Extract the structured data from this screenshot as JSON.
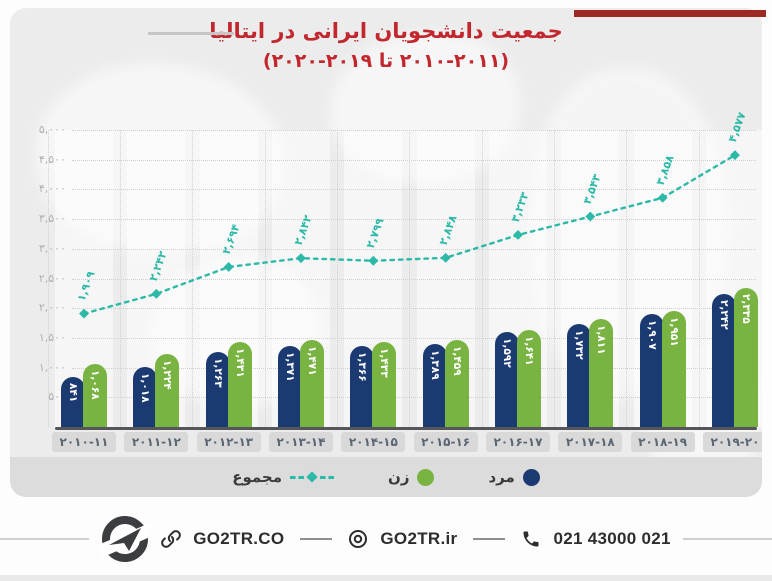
{
  "header": {
    "title": "جمعیت دانشجویان ایرانی در ایتالیا",
    "subtitle": "(۲۰۱۰-۲۰۱۱ تا ۲۰۱۹-۲۰۲۰)"
  },
  "colors": {
    "title_red": "#c1272d",
    "accent_red": "#9e2823",
    "men_blue": "#1c3a72",
    "women_green": "#79b342",
    "total_teal": "#2db9a8",
    "card_bg": "#ececec",
    "legend_bg": "#dcdcdc"
  },
  "chart_data": {
    "type": "bar",
    "title": "جمعیت دانشجویان ایرانی در ایتالیا (2010-2011 تا 2019-2020)",
    "categories": [
      "2010-11",
      "2011-12",
      "2012-13",
      "2013-14",
      "2014-15",
      "2015-16",
      "2016-17",
      "2017-18",
      "2018-19",
      "2019-20"
    ],
    "categories_fa": [
      "۲۰۱۰-۱۱",
      "۲۰۱۱-۱۲",
      "۲۰۱۲-۱۳",
      "۲۰۱۳-۱۴",
      "۲۰۱۴-۱۵",
      "۲۰۱۵-۱۶",
      "۲۰۱۶-۱۷",
      "۲۰۱۷-۱۸",
      "۲۰۱۸-۱۹",
      "۲۰۱۹-۲۰"
    ],
    "series": [
      {
        "name": "مرد",
        "name_en": "men",
        "type": "bar",
        "swatch": "circle",
        "color": "#1c3a72",
        "values": [
          841,
          1018,
          1263,
          1371,
          1366,
          1389,
          1592,
          1732,
          1907,
          2242
        ],
        "labels_fa": [
          "۸۴۱",
          "۱,۰۱۸",
          "۱,۲۶۳",
          "۱,۳۷۱",
          "۱,۳۶۶",
          "۱,۳۸۹",
          "۱,۵۹۲",
          "۱,۷۳۲",
          "۱,۹۰۷",
          "۲,۲۴۲"
        ]
      },
      {
        "name": "زن",
        "name_en": "women",
        "type": "bar",
        "swatch": "circle",
        "color": "#79b342",
        "values": [
          1068,
          1224,
          1431,
          1471,
          1433,
          1459,
          1641,
          1811,
          1951,
          2335
        ],
        "labels_fa": [
          "۱,۰۶۸",
          "۱,۲۲۴",
          "۱,۴۳۱",
          "۱,۴۷۱",
          "۱,۴۳۳",
          "۱,۴۵۹",
          "۱,۶۴۱",
          "۱,۸۱۱",
          "۱,۹۵۱",
          "۲,۳۳۵"
        ]
      },
      {
        "name": "مجموع",
        "name_en": "total",
        "type": "line",
        "swatch": "dashed-line",
        "color": "#2db9a8",
        "values": [
          1909,
          2242,
          2694,
          2842,
          2799,
          2848,
          3233,
          3543,
          3858,
          4577
        ],
        "labels_fa": [
          "۱,۹۰۹",
          "۲,۲۴۲",
          "۲,۶۹۴",
          "۲,۸۴۲",
          "۲,۷۹۹",
          "۲,۸۴۸",
          "۳,۲۳۳",
          "۳,۵۴۳",
          "۳,۸۵۸",
          "۴,۵۷۷"
        ]
      }
    ],
    "y_ticks": [
      {
        "value": 5000,
        "label": "۵,۰۰۰"
      },
      {
        "value": 4500,
        "label": "۴,۵۰۰"
      },
      {
        "value": 4000,
        "label": "۴,۰۰۰"
      },
      {
        "value": 3500,
        "label": "۳,۵۰۰"
      },
      {
        "value": 3000,
        "label": "۳,۰۰۰"
      },
      {
        "value": 2500,
        "label": "۲,۵۰۰"
      },
      {
        "value": 2000,
        "label": "۲,۰۰۰"
      },
      {
        "value": 1500,
        "label": "۱,۵۰۰"
      },
      {
        "value": 1000,
        "label": "۱,۰۰۰"
      },
      {
        "value": 500,
        "label": "۵۰۰"
      },
      {
        "value": 0,
        "label": "۰"
      }
    ],
    "ylim": [
      0,
      5000
    ],
    "grid": true,
    "legend_position": "bottom"
  },
  "icons": {
    "logo": "go2tr-airplane-logo",
    "link": "link-icon",
    "instagram": "instagram-icon",
    "phone": "phone-icon"
  },
  "footer": {
    "website": "GO2TR.CO",
    "instagram_handle": "GO2TR.ir",
    "phone": "021 43000 021"
  }
}
